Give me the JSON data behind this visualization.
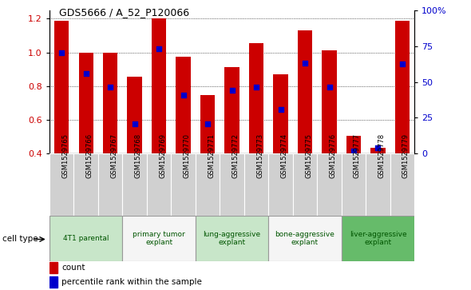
{
  "title": "GDS5666 / A_52_P120066",
  "samples": [
    "GSM1529765",
    "GSM1529766",
    "GSM1529767",
    "GSM1529768",
    "GSM1529769",
    "GSM1529770",
    "GSM1529771",
    "GSM1529772",
    "GSM1529773",
    "GSM1529774",
    "GSM1529775",
    "GSM1529776",
    "GSM1529777",
    "GSM1529778",
    "GSM1529779"
  ],
  "counts": [
    1.185,
    1.0,
    1.0,
    0.855,
    1.2,
    0.975,
    0.745,
    0.915,
    1.055,
    0.87,
    1.13,
    1.01,
    0.505,
    0.435,
    1.185
  ],
  "percentile_ranks": [
    1.0,
    0.875,
    0.795,
    0.575,
    1.02,
    0.745,
    0.575,
    0.775,
    0.795,
    0.66,
    0.935,
    0.795,
    0.415,
    0.435,
    0.93
  ],
  "cell_types": [
    {
      "label": "4T1 parental",
      "start": 0,
      "end": 2,
      "color": "#c8e6c9"
    },
    {
      "label": "primary tumor\nexplant",
      "start": 3,
      "end": 5,
      "color": "#f5f5f5"
    },
    {
      "label": "lung-aggressive\nexplant",
      "start": 6,
      "end": 8,
      "color": "#c8e6c9"
    },
    {
      "label": "bone-aggressive\nexplant",
      "start": 9,
      "end": 11,
      "color": "#f5f5f5"
    },
    {
      "label": "liver-aggressive\nexplant",
      "start": 12,
      "end": 14,
      "color": "#66bb6a"
    }
  ],
  "bar_color": "#cc0000",
  "dot_color": "#0000cc",
  "ylim_left": [
    0.4,
    1.25
  ],
  "ylim_right": [
    0,
    100
  ],
  "yticks_left": [
    0.4,
    0.6,
    0.8,
    1.0,
    1.2
  ],
  "yticks_right": [
    0,
    25,
    50,
    75,
    100
  ],
  "ytick_labels_right": [
    "0",
    "25",
    "50",
    "75",
    "100%"
  ],
  "bar_width": 0.6
}
